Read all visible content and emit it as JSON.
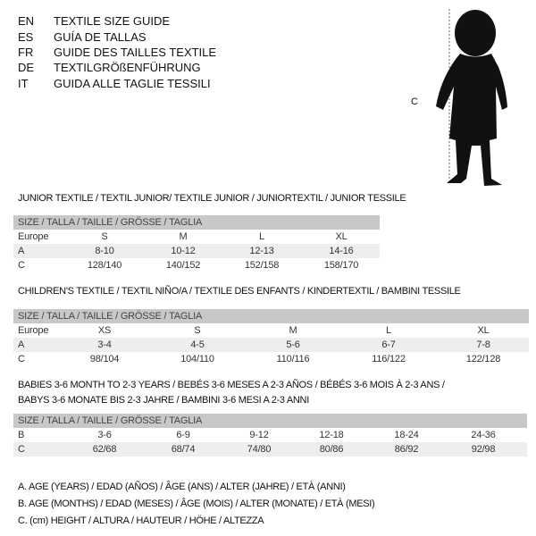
{
  "languages": [
    {
      "code": "EN",
      "title": "TEXTILE SIZE GUIDE"
    },
    {
      "code": "ES",
      "title": "GUÍA DE TALLAS"
    },
    {
      "code": "FR",
      "title": "GUIDE DES TAILLES TEXTILE"
    },
    {
      "code": "DE",
      "title": "TEXTILGRÖßENFÜHRUNG"
    },
    {
      "code": "IT",
      "title": "GUIDA ALLE TAGLIE TESSILI"
    }
  ],
  "figure": {
    "measure_label": "C",
    "icon": "child-silhouette-icon"
  },
  "size_header": "SIZE / TALLA / TAILLE / GRÖSSE / TAGLIA",
  "junior": {
    "title": "JUNIOR TEXTILE / TEXTIL JUNIOR/ TEXTILE JUNIOR / JUNIORTEXTIL / JUNIOR TESSILE",
    "rows": [
      {
        "label": "Europe",
        "values": [
          "S",
          "M",
          "L",
          "XL"
        ]
      },
      {
        "label": "A",
        "values": [
          "8-10",
          "10-12",
          "12-13",
          "14-16"
        ]
      },
      {
        "label": "C",
        "values": [
          "128/140",
          "140/152",
          "152/158",
          "158/170"
        ]
      }
    ]
  },
  "children": {
    "title": "CHILDREN'S TEXTILE / TEXTIL NIÑO/A / TEXTILE DES ENFANTS / KINDERTEXTIL / BAMBINI TESSILE",
    "rows": [
      {
        "label": "Europe",
        "values": [
          "XS",
          "S",
          "M",
          "L",
          "XL"
        ]
      },
      {
        "label": "A",
        "values": [
          "3-4",
          "4-5",
          "5-6",
          "6-7",
          "7-8"
        ]
      },
      {
        "label": "C",
        "values": [
          "98/104",
          "104/110",
          "110/116",
          "116/122",
          "122/128"
        ]
      }
    ]
  },
  "babies": {
    "title_line1": "BABIES 3-6 MONTH TO 2-3 YEARS / BEBÉS 3-6 MESES A 2-3 AÑOS / BÉBÉS 3-6 MOIS À 2-3 ANS /",
    "title_line2": "BABYS 3-6 MONATE BIS 2-3 JAHRE / BAMBINI 3-6 MESI A 2-3 ANNI",
    "rows": [
      {
        "label": "B",
        "values": [
          "3-6",
          "6-9",
          "9-12",
          "12-18",
          "18-24",
          "24-36"
        ]
      },
      {
        "label": "C",
        "values": [
          "62/68",
          "68/74",
          "74/80",
          "80/86",
          "86/92",
          "92/98"
        ]
      }
    ]
  },
  "notes": [
    "A. AGE (YEARS) / EDAD (AÑOS) / ÂGE (ANS) / ALTER (JAHRE) / ETÀ (ANNI)",
    "B. AGE (MONTHS) / EDAD (MESES) / ÂGE (MOIS) / ALTER (MONATE) / ETÀ (MESI)",
    "C. (cm) HEIGHT / ALTURA / HAUTEUR / HÖHE / ALTEZZA"
  ]
}
